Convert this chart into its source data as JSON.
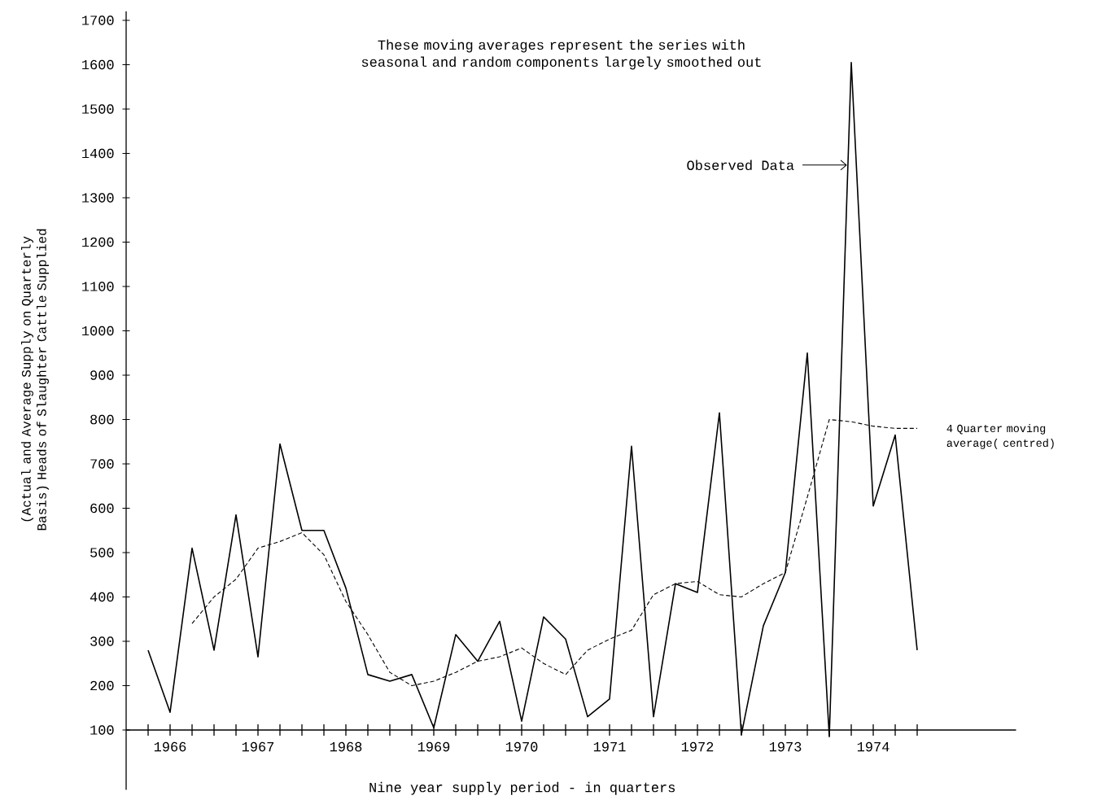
{
  "chart_data": {
    "type": "line",
    "xlabel": "Nine year supply period - in quarters",
    "ylabel": "(Actual and Average Supply on Quarterly Basis) Heads of Slaughter Cattle Supplied",
    "annotations": [
      "These moving averages represent the series with seasonal and random components largely smoothed out"
    ],
    "categories": [
      null,
      "1966",
      null,
      null,
      null,
      "1967",
      null,
      null,
      null,
      "1968",
      null,
      null,
      null,
      "1969",
      null,
      null,
      null,
      "1970",
      null,
      null,
      null,
      "1971",
      null,
      null,
      null,
      "1972",
      null,
      null,
      null,
      "1973",
      null,
      null,
      null,
      "1974",
      null,
      null
    ],
    "series": [
      {
        "name": "Observed Data",
        "color": "#000000",
        "line_style": "solid",
        "values": [
          280,
          140,
          510,
          280,
          585,
          265,
          745,
          550,
          550,
          420,
          225,
          210,
          225,
          105,
          315,
          255,
          345,
          120,
          355,
          305,
          130,
          170,
          740,
          130,
          430,
          410,
          815,
          90,
          335,
          455,
          950,
          85,
          1605,
          605,
          765,
          280
        ]
      },
      {
        "name": "4 Quarter moving average( centred)",
        "color": "#000000",
        "line_style": "dashed",
        "values": [
          null,
          null,
          340,
          400,
          440,
          510,
          525,
          545,
          495,
          390,
          315,
          230,
          200,
          210,
          230,
          255,
          265,
          285,
          250,
          225,
          280,
          305,
          325,
          405,
          430,
          435,
          405,
          400,
          430,
          455,
          625,
          800,
          795,
          785,
          780,
          780
        ]
      }
    ],
    "ylim": [
      -35,
      1720
    ],
    "yticks": [
      100,
      200,
      300,
      400,
      500,
      600,
      700,
      800,
      900,
      1000,
      1100,
      1200,
      1300,
      1400,
      1500,
      1600,
      1700
    ],
    "marker": "none",
    "grid": false
  }
}
